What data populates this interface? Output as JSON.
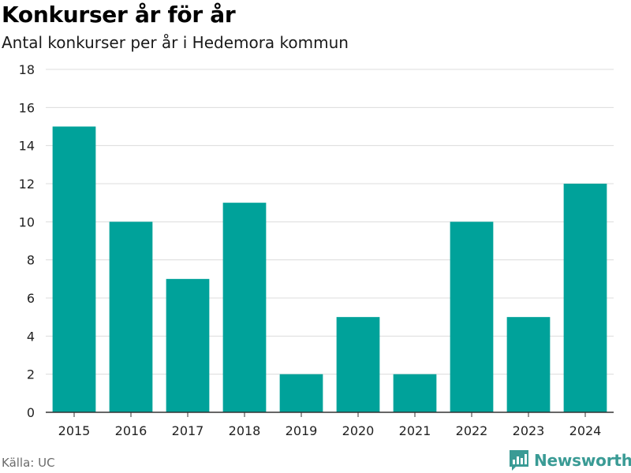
{
  "title": "Konkurser år för år",
  "subtitle": "Antal konkurser per år i Hedemora kommun",
  "source": "Källa: UC",
  "brand": {
    "name": "Newsworthy",
    "icon": "newsworthy-logo-icon",
    "color": "#3a9b95"
  },
  "chart_data": {
    "type": "bar",
    "categories": [
      "2015",
      "2016",
      "2017",
      "2018",
      "2019",
      "2020",
      "2021",
      "2022",
      "2023",
      "2024"
    ],
    "values": [
      15,
      10,
      7,
      11,
      2,
      5,
      2,
      10,
      5,
      12
    ],
    "ylim": [
      0,
      18
    ],
    "yticks": [
      0,
      2,
      4,
      6,
      8,
      10,
      12,
      14,
      16,
      18
    ],
    "grid": true,
    "bar_color": "#00a29a",
    "xlabel": "",
    "ylabel": ""
  }
}
